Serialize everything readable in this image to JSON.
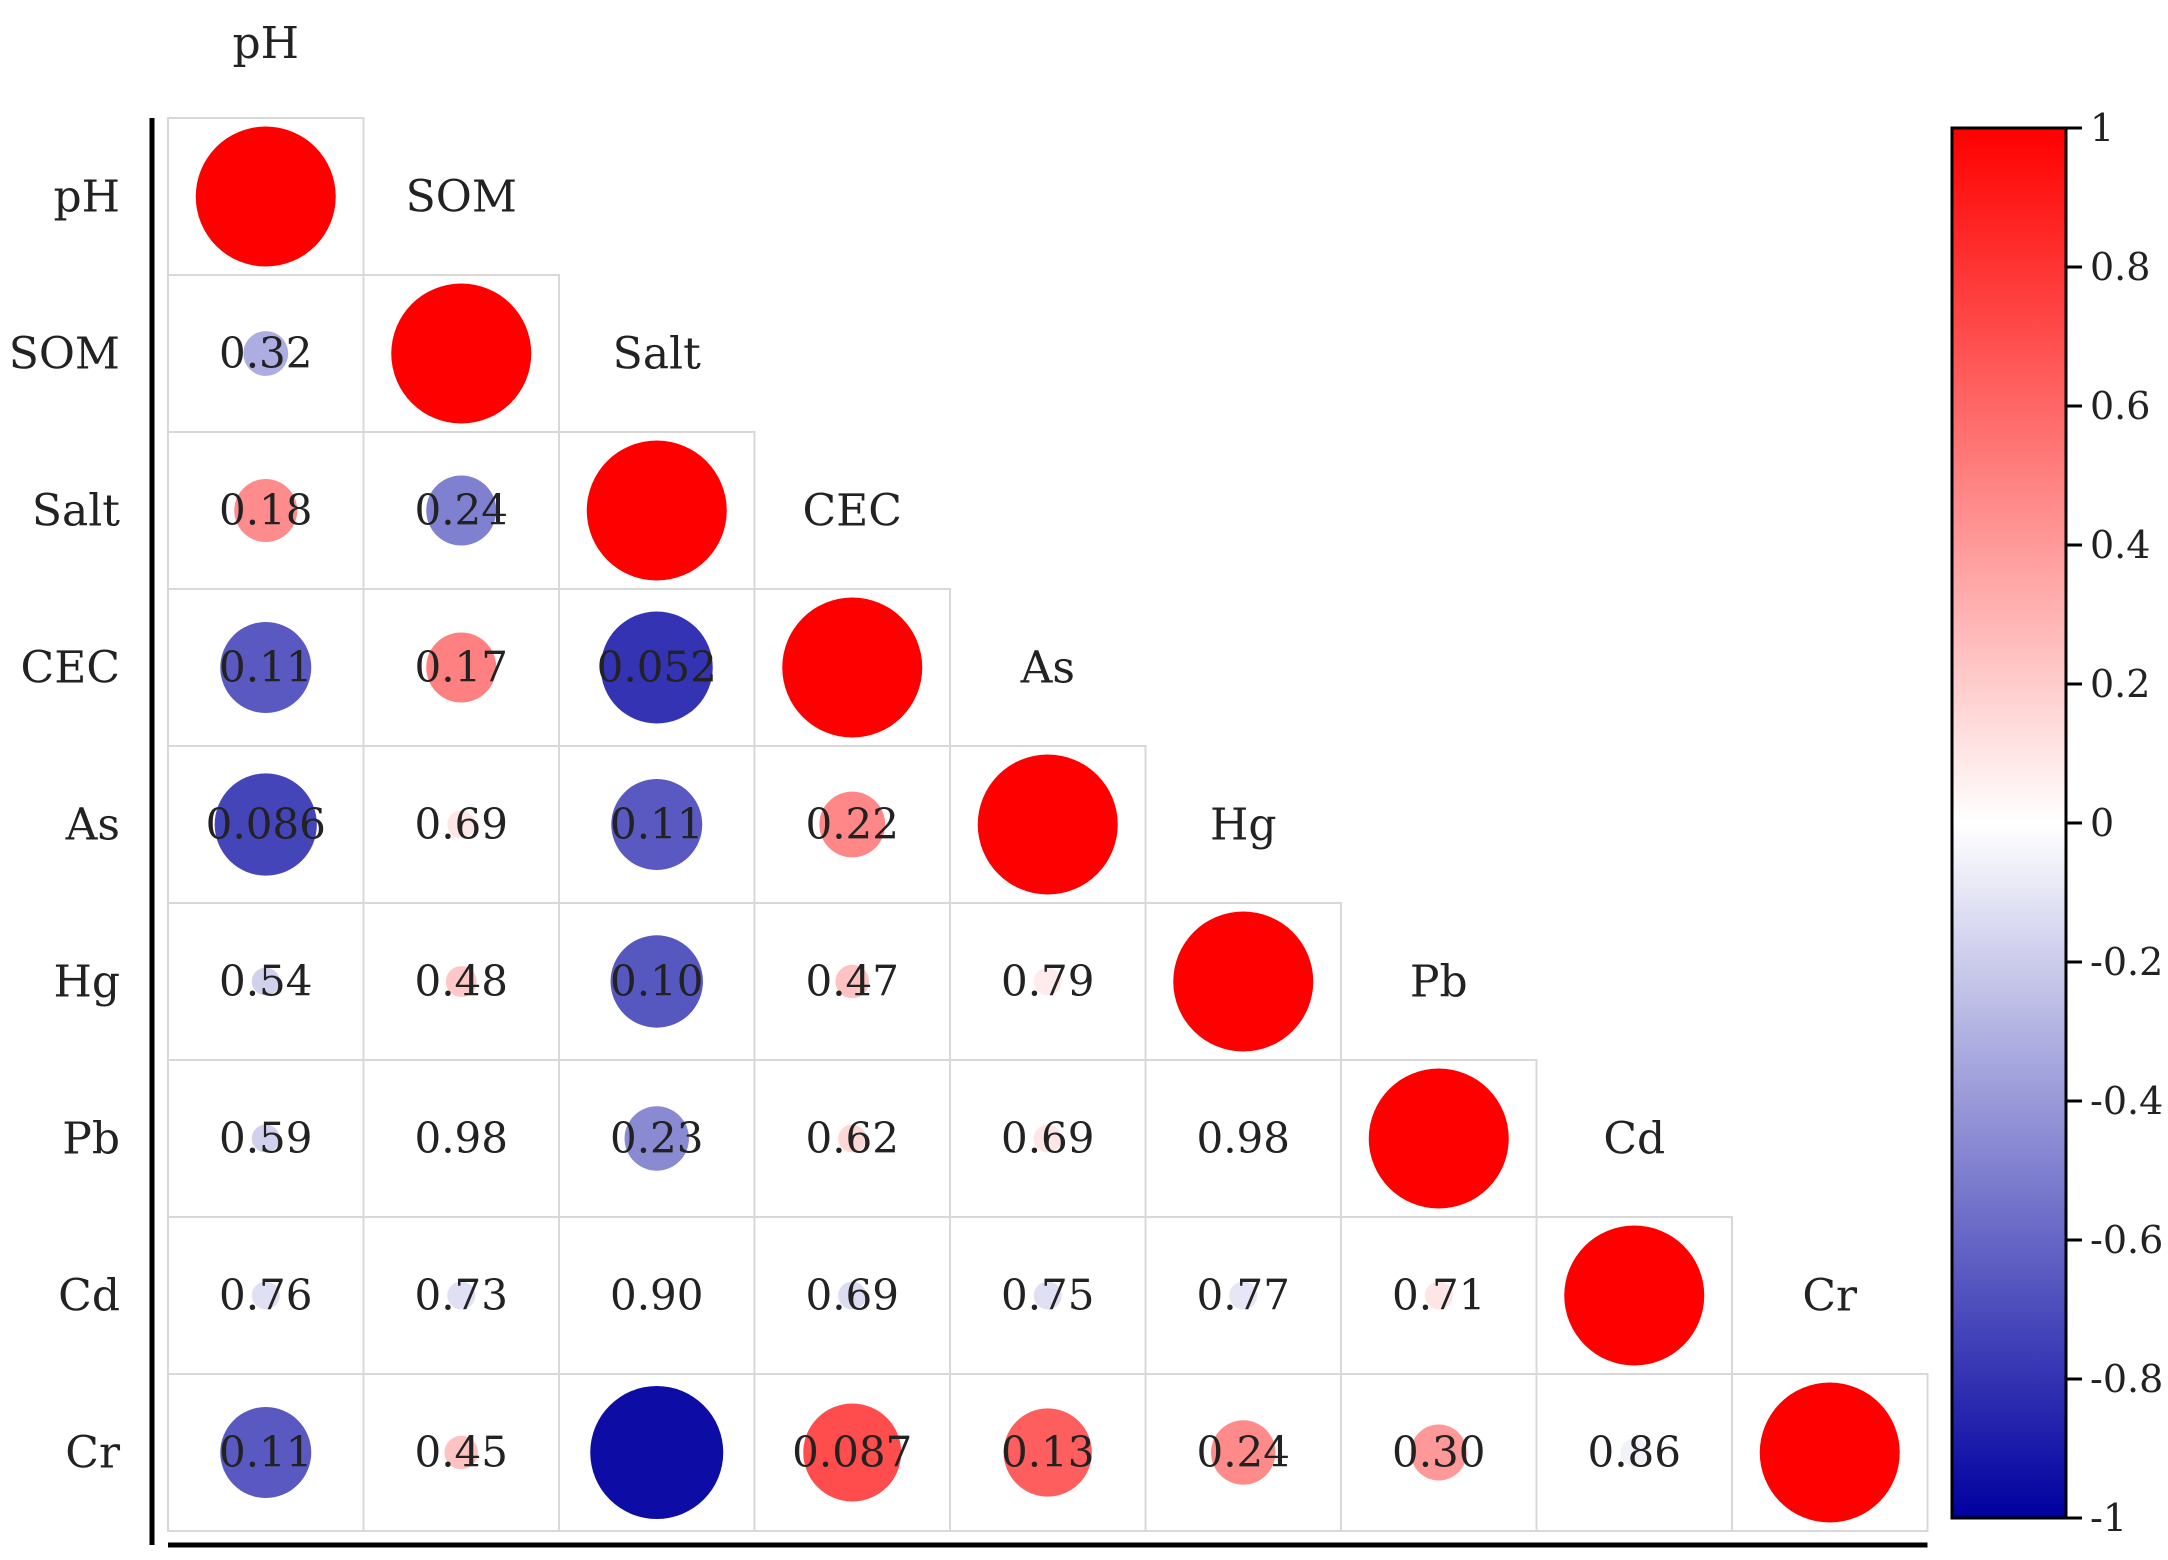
{
  "chart_data": {
    "type": "heatmap",
    "variables": [
      "pH",
      "SOM",
      "Salt",
      "CEC",
      "As",
      "Hg",
      "Pb",
      "Cd",
      "Cr"
    ],
    "diagonal_value": 1,
    "lower_triangle": [
      {
        "row": "SOM",
        "col": "pH",
        "label": "0.32",
        "r": -0.32
      },
      {
        "row": "Salt",
        "col": "pH",
        "label": "0.18",
        "r": 0.45
      },
      {
        "row": "Salt",
        "col": "SOM",
        "label": "0.24",
        "r": -0.5
      },
      {
        "row": "CEC",
        "col": "pH",
        "label": "0.11",
        "r": -0.65
      },
      {
        "row": "CEC",
        "col": "SOM",
        "label": "0.17",
        "r": 0.5
      },
      {
        "row": "CEC",
        "col": "Salt",
        "label": "0.052",
        "r": -0.8
      },
      {
        "row": "As",
        "col": "pH",
        "label": "0.086",
        "r": -0.73
      },
      {
        "row": "As",
        "col": "SOM",
        "label": "0.69",
        "r": 0.1
      },
      {
        "row": "As",
        "col": "Salt",
        "label": "0.11",
        "r": -0.65
      },
      {
        "row": "As",
        "col": "CEC",
        "label": "0.22",
        "r": 0.47
      },
      {
        "row": "Hg",
        "col": "pH",
        "label": "0.54",
        "r": -0.18
      },
      {
        "row": "Hg",
        "col": "SOM",
        "label": "0.48",
        "r": 0.22
      },
      {
        "row": "Hg",
        "col": "Salt",
        "label": "0.10",
        "r": -0.66
      },
      {
        "row": "Hg",
        "col": "CEC",
        "label": "0.47",
        "r": 0.24
      },
      {
        "row": "Hg",
        "col": "As",
        "label": "0.79",
        "r": 0.08
      },
      {
        "row": "Pb",
        "col": "pH",
        "label": "0.59",
        "r": -0.18
      },
      {
        "row": "Pb",
        "col": "SOM",
        "label": "0.98",
        "r": 0.0
      },
      {
        "row": "Pb",
        "col": "Salt",
        "label": "0.23",
        "r": -0.46
      },
      {
        "row": "Pb",
        "col": "CEC",
        "label": "0.62",
        "r": 0.16
      },
      {
        "row": "Pb",
        "col": "As",
        "label": "0.69",
        "r": 0.1
      },
      {
        "row": "Pb",
        "col": "Hg",
        "label": "0.98",
        "r": 0.0
      },
      {
        "row": "Cd",
        "col": "pH",
        "label": "0.76",
        "r": -0.12
      },
      {
        "row": "Cd",
        "col": "SOM",
        "label": "0.73",
        "r": -0.12
      },
      {
        "row": "Cd",
        "col": "Salt",
        "label": "0.90",
        "r": 0.0
      },
      {
        "row": "Cd",
        "col": "CEC",
        "label": "0.69",
        "r": -0.14
      },
      {
        "row": "Cd",
        "col": "As",
        "label": "0.75",
        "r": -0.12
      },
      {
        "row": "Cd",
        "col": "Hg",
        "label": "0.77",
        "r": -0.1
      },
      {
        "row": "Cd",
        "col": "Pb",
        "label": "0.71",
        "r": 0.1
      },
      {
        "row": "Cr",
        "col": "pH",
        "label": "0.11",
        "r": -0.65
      },
      {
        "row": "Cr",
        "col": "SOM",
        "label": "0.45",
        "r": 0.24
      },
      {
        "row": "Cr",
        "col": "Salt",
        "label": "",
        "r": -0.95
      },
      {
        "row": "Cr",
        "col": "CEC",
        "label": "0.087",
        "r": 0.7
      },
      {
        "row": "Cr",
        "col": "As",
        "label": "0.13",
        "r": 0.63
      },
      {
        "row": "Cr",
        "col": "Hg",
        "label": "0.24",
        "r": 0.46
      },
      {
        "row": "Cr",
        "col": "Pb",
        "label": "0.30",
        "r": 0.4
      },
      {
        "row": "Cr",
        "col": "Cd",
        "label": "0.86",
        "r": -0.05
      }
    ],
    "colorbar": {
      "min": -1,
      "max": 1,
      "ticks": [
        "1",
        "0.8",
        "0.6",
        "0.4",
        "0.2",
        "0",
        "-0.2",
        "-0.4",
        "-0.6",
        "-0.8",
        "-1"
      ],
      "colors": {
        "negative": "#0000a0",
        "zero": "#ffffff",
        "positive": "#ff0000"
      }
    },
    "legend_position": "right",
    "grid": true
  }
}
